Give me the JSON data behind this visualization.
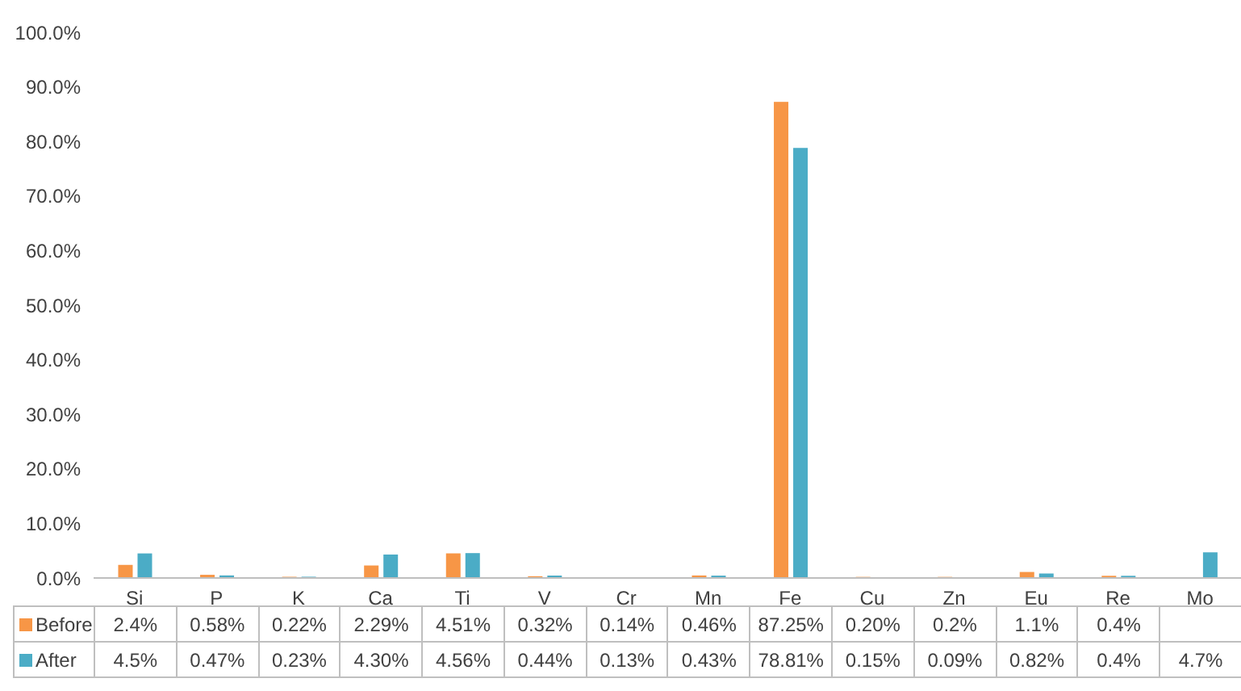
{
  "chart_data": {
    "type": "bar",
    "categories": [
      "Si",
      "P",
      "K",
      "Ca",
      "Ti",
      "V",
      "Cr",
      "Mn",
      "Fe",
      "Cu",
      "Zn",
      "Eu",
      "Re",
      "Mo"
    ],
    "series": [
      {
        "name": "Before",
        "color": "#f79646",
        "values": [
          2.4,
          0.58,
          0.22,
          2.29,
          4.51,
          0.32,
          0.14,
          0.46,
          87.25,
          0.2,
          0.2,
          1.1,
          0.4,
          null
        ],
        "value_labels": [
          "2.4%",
          "0.58%",
          "0.22%",
          "2.29%",
          "4.51%",
          "0.32%",
          "0.14%",
          "0.46%",
          "87.25%",
          "0.20%",
          "0.2%",
          "1.1%",
          "0.4%",
          null
        ]
      },
      {
        "name": "After",
        "color": "#4bacc6",
        "values": [
          4.5,
          0.47,
          0.23,
          4.3,
          4.56,
          0.44,
          0.13,
          0.43,
          78.81,
          0.15,
          0.09,
          0.82,
          0.4,
          4.7
        ],
        "value_labels": [
          "4.5%",
          "0.47%",
          "0.23%",
          "4.30%",
          "4.56%",
          "0.44%",
          "0.13%",
          "0.43%",
          "78.81%",
          "0.15%",
          "0.09%",
          "0.82%",
          "0.4%",
          "4.7%"
        ]
      }
    ],
    "ylim": [
      0,
      100
    ],
    "yticks": [
      {
        "value": 0,
        "label": "0.0%"
      },
      {
        "value": 10,
        "label": "10.0%"
      },
      {
        "value": 20,
        "label": "20.0%"
      },
      {
        "value": 30,
        "label": "30.0%"
      },
      {
        "value": 40,
        "label": "40.0%"
      },
      {
        "value": 50,
        "label": "50.0%"
      },
      {
        "value": 60,
        "label": "60.0%"
      },
      {
        "value": 70,
        "label": "70.0%"
      },
      {
        "value": 80,
        "label": "80.0%"
      },
      {
        "value": 90,
        "label": "90.0%"
      },
      {
        "value": 100,
        "label": "100.0%"
      }
    ],
    "grid": false,
    "legend": "bottom left"
  }
}
